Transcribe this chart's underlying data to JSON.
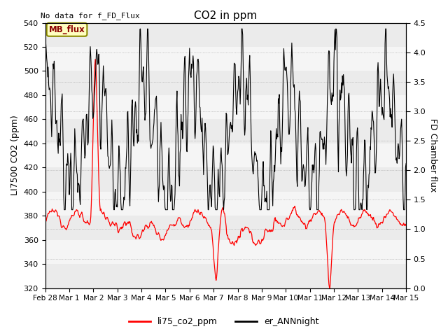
{
  "title": "CO2 in ppm",
  "ylabel_left": "LI7500 CO2 (ppm)",
  "ylabel_right": "FD Chamber flux",
  "ylim_left": [
    320,
    540
  ],
  "ylim_right": [
    0.0,
    4.5
  ],
  "top_left_text": "No data for f_FD_Flux",
  "mb_flux_label": "MB_flux",
  "legend_entries": [
    "li75_co2_ppm",
    "er_ANNnight"
  ],
  "line_colors": [
    "red",
    "black"
  ],
  "yticks_left": [
    320,
    340,
    360,
    380,
    400,
    420,
    440,
    460,
    480,
    500,
    520,
    540
  ],
  "yticks_right": [
    0.0,
    0.5,
    1.0,
    1.5,
    2.0,
    2.5,
    3.0,
    3.5,
    4.0,
    4.5
  ],
  "stripe_colors": [
    "#ebebeb",
    "#f5f5f5"
  ],
  "figsize": [
    6.4,
    4.8
  ],
  "dpi": 100
}
